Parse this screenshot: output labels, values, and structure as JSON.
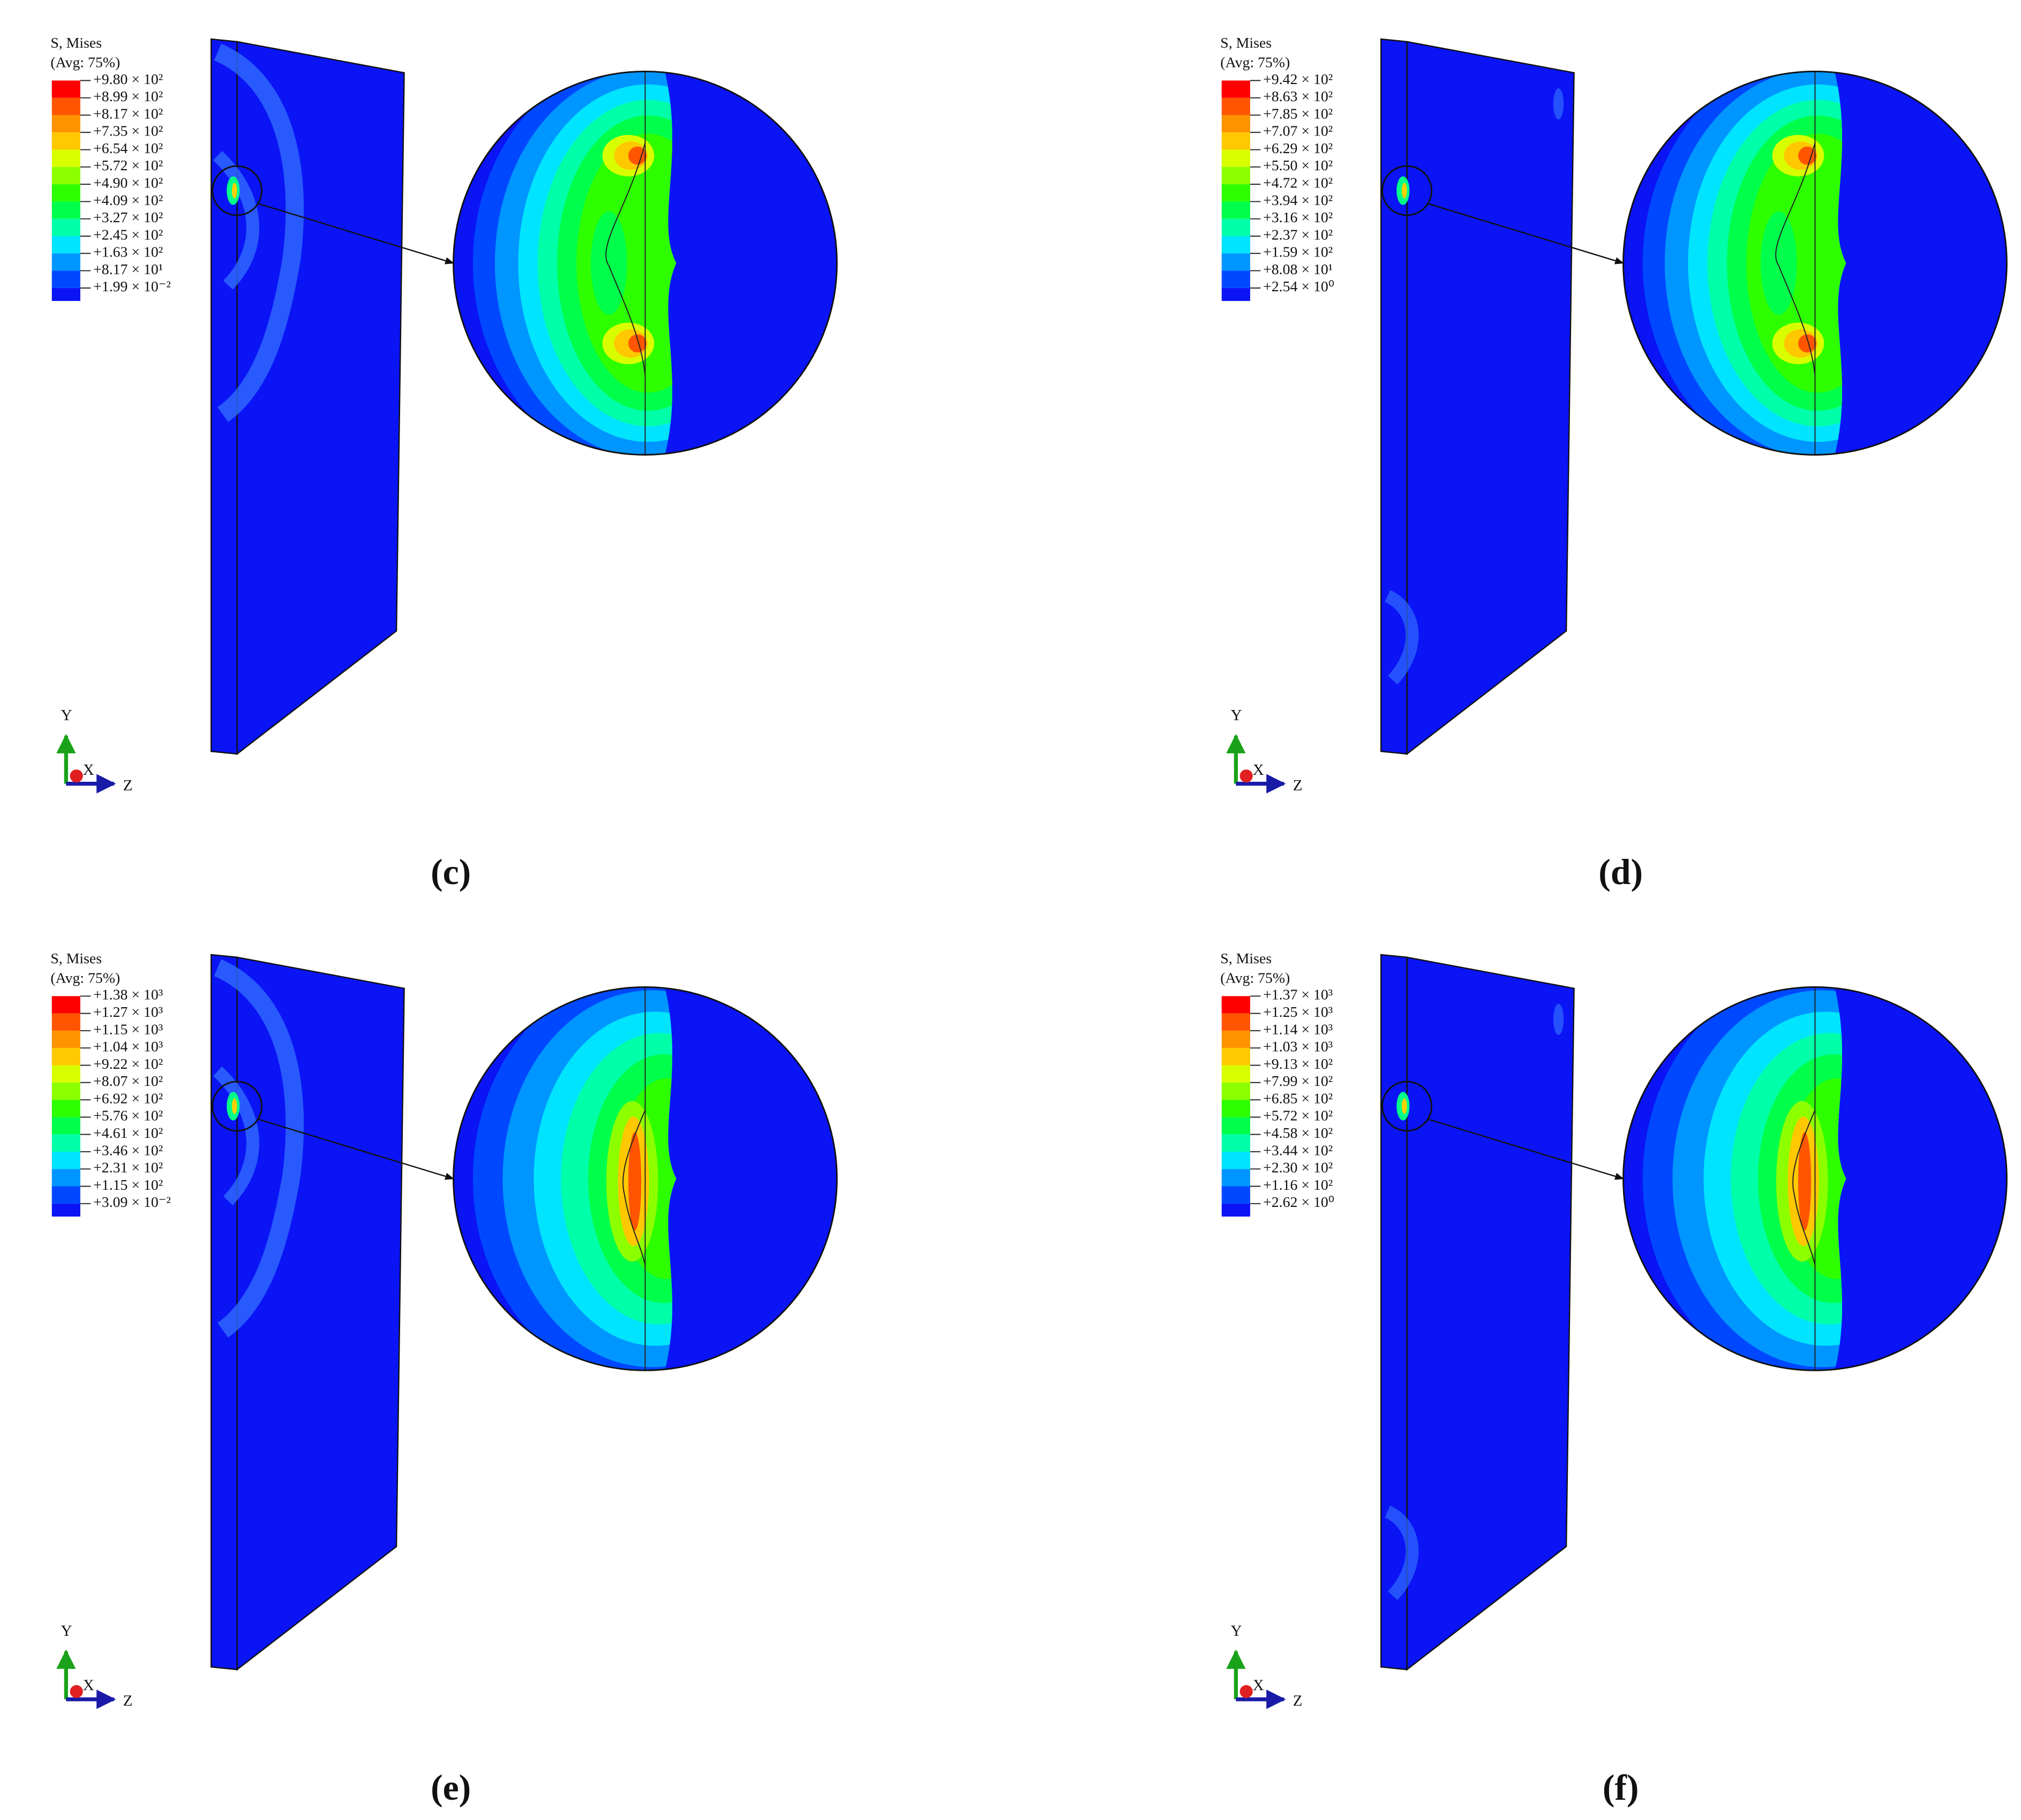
{
  "panels": [
    {
      "legend_title": "S, Mises",
      "legend_subtitle": "(Avg: 75%)",
      "legend_values": [
        "+9.80 × 10²",
        "+8.99 × 10²",
        "+8.17 × 10²",
        "+7.35 × 10²",
        "+6.54 × 10²",
        "+5.72 × 10²",
        "+4.90 × 10²",
        "+4.09 × 10²",
        "+3.27 × 10²",
        "+2.45 × 10²",
        "+1.63 × 10²",
        "+8.17 × 10¹",
        "+1.99 × 10⁻²"
      ],
      "axes": {
        "y": "Y",
        "x": "X",
        "z": "Z"
      },
      "caption": "(c)"
    },
    {
      "legend_title": "S, Mises",
      "legend_subtitle": "(Avg: 75%)",
      "legend_values": [
        "+9.42 × 10²",
        "+8.63 × 10²",
        "+7.85 × 10²",
        "+7.07 × 10²",
        "+6.29 × 10²",
        "+5.50 × 10²",
        "+4.72 × 10²",
        "+3.94 × 10²",
        "+3.16 × 10²",
        "+2.37 × 10²",
        "+1.59 × 10²",
        "+8.08 × 10¹",
        "+2.54 × 10⁰"
      ],
      "axes": {
        "y": "Y",
        "x": "X",
        "z": "Z"
      },
      "caption": "(d)"
    },
    {
      "legend_title": "S, Mises",
      "legend_subtitle": "(Avg: 75%)",
      "legend_values": [
        "+1.38 × 10³",
        "+1.27 × 10³",
        "+1.15 × 10³",
        "+1.04 × 10³",
        "+9.22 × 10²",
        "+8.07 × 10²",
        "+6.92 × 10²",
        "+5.76 × 10²",
        "+4.61 × 10²",
        "+3.46 × 10²",
        "+2.31 × 10²",
        "+1.15 × 10²",
        "+3.09 × 10⁻²"
      ],
      "axes": {
        "y": "Y",
        "x": "X",
        "z": "Z"
      },
      "caption": "(e)"
    },
    {
      "legend_title": "S, Mises",
      "legend_subtitle": "(Avg: 75%)",
      "legend_values": [
        "+1.37 × 10³",
        "+1.25 × 10³",
        "+1.14 × 10³",
        "+1.03 × 10³",
        "+9.13 × 10²",
        "+7.99 × 10²",
        "+6.85 × 10²",
        "+5.72 × 10²",
        "+4.58 × 10²",
        "+3.44 × 10²",
        "+2.30 × 10²",
        "+1.16 × 10²",
        "+2.62 × 10⁰"
      ],
      "axes": {
        "y": "Y",
        "x": "X",
        "z": "Z"
      },
      "caption": "(f)"
    }
  ],
  "legend_colors": [
    "#ff0000",
    "#ff5500",
    "#ff9300",
    "#ffc800",
    "#d8ff00",
    "#8cff00",
    "#2eff00",
    "#00ff4a",
    "#00ffa8",
    "#00e4ff",
    "#0096ff",
    "#0048ff"
  ]
}
